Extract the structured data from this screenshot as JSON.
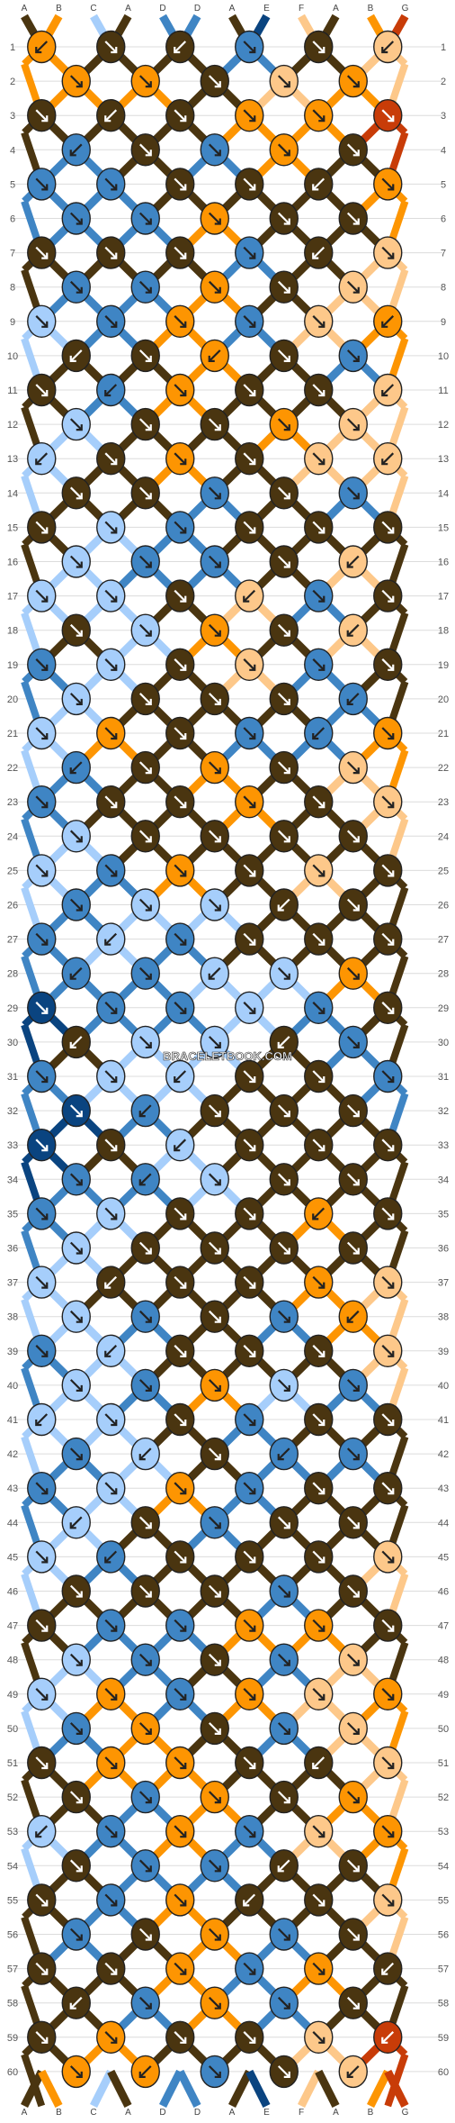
{
  "watermark": "BRACELETBOOK.COM",
  "colors": {
    "A": "#4a3510",
    "B": "#fd9502",
    "C": "#a6cefb",
    "D": "#3f85c4",
    "E": "#0a4480",
    "F": "#fdc88a",
    "G": "#c83c08"
  },
  "strings_top": [
    "A",
    "B",
    "C",
    "A",
    "D",
    "D",
    "A",
    "E",
    "F",
    "A",
    "B",
    "G"
  ],
  "strings_bottom": [
    "A",
    "B",
    "C",
    "A",
    "D",
    "D",
    "A",
    "E",
    "F",
    "A",
    "B",
    "G"
  ],
  "rows": [
    "1",
    "2",
    "3",
    "4",
    "5",
    "6",
    "7",
    "8",
    "9",
    "10",
    "11",
    "12",
    "13",
    "14",
    "15",
    "16",
    "17",
    "18",
    "19",
    "20",
    "21",
    "22",
    "23",
    "24",
    "25",
    "26",
    "27",
    "28",
    "29",
    "30",
    "31",
    "32",
    "33",
    "34",
    "35",
    "36",
    "37",
    "38",
    "39",
    "40",
    "41",
    "42",
    "43",
    "44",
    "45",
    "46",
    "47",
    "48",
    "49",
    "50",
    "51",
    "52",
    "53",
    "54",
    "55",
    "56",
    "57",
    "58",
    "59",
    "60"
  ],
  "knot_rows": [
    "BAADAF",
    "BBAFBG",
    "AAABBG",
    "DADBAB",
    "DDAAAB",
    "DDBAAF",
    "AAADAF",
    "DDBAFB",
    "CDBDFB",
    "AABADF",
    "ADBAAF",
    "CAABFF",
    "CABAFF",
    "AADADF",
    "ACDAAA",
    "CDDAFB",
    "CCAFDA",
    "ACBAFA",
    "DCAFDA",
    "CAAADA",
    "CBADDB",
    "DABAFF",
    "DAABAF",
    "CAAAAA",
    "CDBAFA",
    "DCCAAA",
    "DCDAAA",
    "DDCCBA",
    "EDDCDA",
    "ACCADB",
    "DCCAAD",
    "EDAAAD",
    "EACAAA",
    "DDCAAA",
    "DCAABA",
    "CAAAAA",
    "CAAABF",
    "CDADBF",
    "DCAAAF",
    "CDBCDA",
    "CCADAA",
    "DCADDA",
    "DCBDAA",
    "CADAAA",
    "CDAAAF",
    "AAADAF",
    "ADDBBA",
    "CDADFF",
    "CBDBFB",
    "DBADFF",
    "ABBAAF",
    "ADBABF",
    "CDBDFB",
    "ADDAAA",
    "ADBAAF",
    "DABDAB",
    "AABDBA",
    "ADBDAF",
    "ABAAFG",
    "BBDAFB"
  ],
  "dir_rows": [
    "ldlddl",
    "rrrrrl",
    "rlrrrr",
    "lrrrrr",
    "rrrrlr",
    "rrrrrr",
    "rrrrlr",
    "rrrrrr",
    "rrrrrl",
    "lrlrrr",
    "rlrrrl",
    "rrrrrr",
    "lrrrrl",
    "rrrrrr",
    "rrrrrr",
    "rrrrlr",
    "rrrlrr",
    "rrrrlr",
    "rrrrrr",
    "rrrrlr",
    "rrrrlr",
    "lrrrrl",
    "rrrrrr",
    "rrrrrr",
    "rrrrrr",
    "rrrlrr",
    "rlrrrr",
    "lrlrrr",
    "rrrrrr",
    "lrrlrr",
    "rrlrrr",
    "rlrrrr",
    "rrlrrr",
    "rlrrrr",
    "rrrrlr",
    "rrrrrr",
    "rlrrrr",
    "rrrrlr",
    "rlrrrr",
    "rrrrrr",
    "lrrrrr",
    "rlrlrr",
    "rrrrrr",
    "lrrrrr",
    "rlrrrr",
    "rrrrrr",
    "rrrrrr",
    "rrrrrr",
    "rrrrrr",
    "rrrrrl",
    "rrrrlr",
    "rrrrrr",
    "lrrrrr",
    "rrrlrl",
    "rrrlrr",
    "rrrrrr",
    "rrrrrl",
    "lrrrrr",
    "rrrrrl",
    "rlrrlr"
  ]
}
